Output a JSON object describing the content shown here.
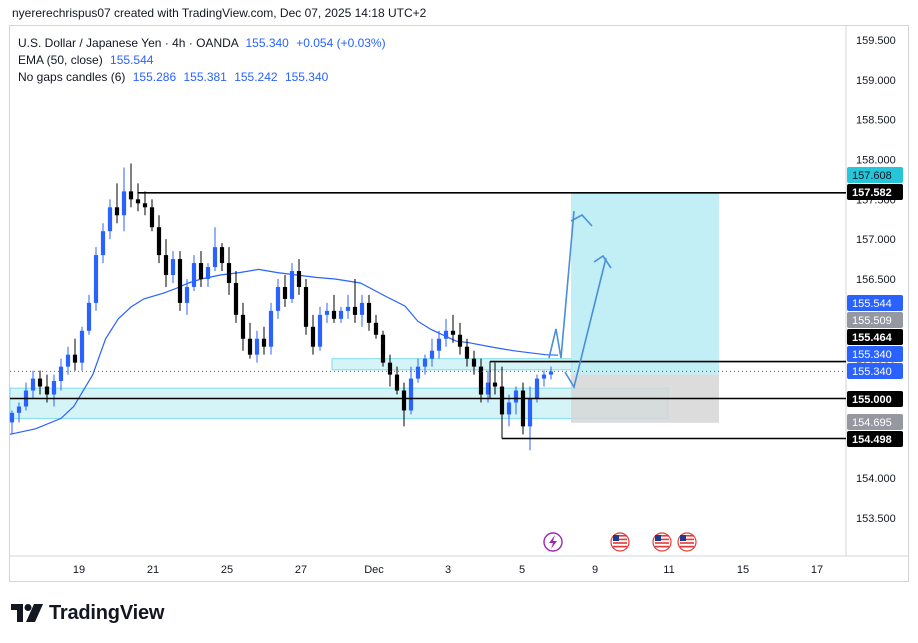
{
  "attribution": "nyererechrispus07 created with TradingView.com, Dec 07, 2025 14:18 UTC+2",
  "legend": {
    "symbol": "U.S. Dollar / Japanese Yen · 4h · OANDA",
    "price": "155.340",
    "change": "+0.054 (+0.03%)",
    "ema_label": "EMA (50, close)",
    "ema_value": "155.544",
    "candles_label": "No gaps candles (6)",
    "candles_values": [
      "155.286",
      "155.381",
      "155.242",
      "155.340"
    ]
  },
  "brand": "TradingView",
  "colors": {
    "up": "#2962ff",
    "down": "#000000",
    "ema": "#2962ff",
    "zone": "#b2ebf2",
    "target": "#b2ebf2",
    "stop": "#d6d6d6",
    "accent": "#26c6da"
  },
  "chart_data": {
    "type": "candlestick",
    "timeframe": "4h",
    "x_ticks": [
      "19",
      "21",
      "25",
      "27",
      "Dec",
      "3",
      "5",
      "9",
      "11",
      "15",
      "17"
    ],
    "y_ticks": [
      "159.500",
      "159.000",
      "158.500",
      "158.000",
      "157.500",
      "157.000",
      "156.500",
      "156.000",
      "155.500",
      "155.000",
      "154.500",
      "154.000",
      "153.500"
    ],
    "ylim": [
      153.25,
      159.75
    ],
    "price_tags": [
      {
        "label": "157.608",
        "value": 157.608,
        "style": "cyan"
      },
      {
        "label": "157.582",
        "value": 157.582,
        "style": "black"
      },
      {
        "label": "155.544",
        "value": 155.544,
        "style": "blue"
      },
      {
        "label": "155.509",
        "value": 155.509,
        "style": "gray"
      },
      {
        "label": "155.464",
        "value": 155.464,
        "style": "black"
      },
      {
        "label": "155.340",
        "value": 155.34,
        "style": "blue"
      },
      {
        "label": "155.340",
        "value": 155.34,
        "style": "blue"
      },
      {
        "label": "155.000",
        "value": 155.0,
        "style": "black"
      },
      {
        "label": "154.695",
        "value": 154.695,
        "style": "gray"
      },
      {
        "label": "154.498",
        "value": 154.498,
        "style": "black"
      }
    ],
    "horizontal_levels": [
      157.582,
      155.464,
      155.0,
      154.498
    ],
    "zones": [
      {
        "from": 154.75,
        "to": 155.13
      },
      {
        "from": 155.36,
        "to": 155.5
      }
    ],
    "position": {
      "entry": 155.3,
      "target": 157.582,
      "stop": 154.695
    },
    "candles": [
      {
        "o": 154.7,
        "h": 154.85,
        "l": 154.55,
        "c": 154.82
      },
      {
        "o": 154.82,
        "h": 154.95,
        "l": 154.7,
        "c": 154.9
      },
      {
        "o": 154.9,
        "h": 155.2,
        "l": 154.85,
        "c": 155.1
      },
      {
        "o": 155.1,
        "h": 155.35,
        "l": 155.0,
        "c": 155.25
      },
      {
        "o": 155.25,
        "h": 155.35,
        "l": 155.05,
        "c": 155.15
      },
      {
        "o": 155.15,
        "h": 155.3,
        "l": 154.95,
        "c": 155.05
      },
      {
        "o": 155.05,
        "h": 155.3,
        "l": 154.9,
        "c": 155.22
      },
      {
        "o": 155.22,
        "h": 155.5,
        "l": 155.1,
        "c": 155.4
      },
      {
        "o": 155.4,
        "h": 155.65,
        "l": 155.3,
        "c": 155.55
      },
      {
        "o": 155.55,
        "h": 155.75,
        "l": 155.35,
        "c": 155.45
      },
      {
        "o": 155.45,
        "h": 155.9,
        "l": 155.35,
        "c": 155.85
      },
      {
        "o": 155.85,
        "h": 156.3,
        "l": 155.8,
        "c": 156.2
      },
      {
        "o": 156.2,
        "h": 156.9,
        "l": 156.1,
        "c": 156.8
      },
      {
        "o": 156.8,
        "h": 157.2,
        "l": 156.7,
        "c": 157.1
      },
      {
        "o": 157.1,
        "h": 157.5,
        "l": 157.0,
        "c": 157.4
      },
      {
        "o": 157.4,
        "h": 157.7,
        "l": 157.2,
        "c": 157.3
      },
      {
        "o": 157.3,
        "h": 157.9,
        "l": 157.1,
        "c": 157.6
      },
      {
        "o": 157.6,
        "h": 157.95,
        "l": 157.4,
        "c": 157.5
      },
      {
        "o": 157.5,
        "h": 157.7,
        "l": 157.35,
        "c": 157.45
      },
      {
        "o": 157.45,
        "h": 157.6,
        "l": 157.3,
        "c": 157.4
      },
      {
        "o": 157.4,
        "h": 157.5,
        "l": 157.1,
        "c": 157.15
      },
      {
        "o": 157.15,
        "h": 157.3,
        "l": 156.7,
        "c": 156.8
      },
      {
        "o": 156.8,
        "h": 157.0,
        "l": 156.4,
        "c": 156.55
      },
      {
        "o": 156.55,
        "h": 156.85,
        "l": 156.45,
        "c": 156.75
      },
      {
        "o": 156.75,
        "h": 156.85,
        "l": 156.1,
        "c": 156.2
      },
      {
        "o": 156.2,
        "h": 156.5,
        "l": 156.05,
        "c": 156.4
      },
      {
        "o": 156.4,
        "h": 156.8,
        "l": 156.35,
        "c": 156.7
      },
      {
        "o": 156.7,
        "h": 156.85,
        "l": 156.4,
        "c": 156.5
      },
      {
        "o": 156.5,
        "h": 156.7,
        "l": 156.4,
        "c": 156.65
      },
      {
        "o": 156.65,
        "h": 157.15,
        "l": 156.6,
        "c": 156.9
      },
      {
        "o": 156.9,
        "h": 156.95,
        "l": 156.6,
        "c": 156.7
      },
      {
        "o": 156.7,
        "h": 156.9,
        "l": 156.3,
        "c": 156.45
      },
      {
        "o": 156.45,
        "h": 156.6,
        "l": 155.95,
        "c": 156.05
      },
      {
        "o": 156.05,
        "h": 156.2,
        "l": 155.6,
        "c": 155.75
      },
      {
        "o": 155.75,
        "h": 155.95,
        "l": 155.5,
        "c": 155.55
      },
      {
        "o": 155.55,
        "h": 155.85,
        "l": 155.45,
        "c": 155.75
      },
      {
        "o": 155.75,
        "h": 155.9,
        "l": 155.55,
        "c": 155.65
      },
      {
        "o": 155.65,
        "h": 156.2,
        "l": 155.55,
        "c": 156.1
      },
      {
        "o": 156.1,
        "h": 156.5,
        "l": 156.0,
        "c": 156.4
      },
      {
        "o": 156.4,
        "h": 156.55,
        "l": 156.15,
        "c": 156.25
      },
      {
        "o": 156.25,
        "h": 156.7,
        "l": 156.2,
        "c": 156.6
      },
      {
        "o": 156.6,
        "h": 156.75,
        "l": 156.3,
        "c": 156.4
      },
      {
        "o": 156.4,
        "h": 156.5,
        "l": 155.8,
        "c": 155.9
      },
      {
        "o": 155.9,
        "h": 156.05,
        "l": 155.55,
        "c": 155.65
      },
      {
        "o": 155.65,
        "h": 156.15,
        "l": 155.6,
        "c": 156.05
      },
      {
        "o": 156.05,
        "h": 156.2,
        "l": 155.95,
        "c": 156.1
      },
      {
        "o": 156.1,
        "h": 156.3,
        "l": 155.95,
        "c": 156.0
      },
      {
        "o": 156.0,
        "h": 156.15,
        "l": 155.95,
        "c": 156.1
      },
      {
        "o": 156.1,
        "h": 156.3,
        "l": 156.0,
        "c": 156.15
      },
      {
        "o": 156.15,
        "h": 156.5,
        "l": 155.95,
        "c": 156.05
      },
      {
        "o": 156.05,
        "h": 156.3,
        "l": 155.9,
        "c": 156.2
      },
      {
        "o": 156.2,
        "h": 156.3,
        "l": 155.85,
        "c": 155.95
      },
      {
        "o": 155.95,
        "h": 156.05,
        "l": 155.75,
        "c": 155.8
      },
      {
        "o": 155.8,
        "h": 155.85,
        "l": 155.4,
        "c": 155.45
      },
      {
        "o": 155.45,
        "h": 155.55,
        "l": 155.15,
        "c": 155.3
      },
      {
        "o": 155.3,
        "h": 155.4,
        "l": 155.05,
        "c": 155.1
      },
      {
        "o": 155.1,
        "h": 155.2,
        "l": 154.65,
        "c": 154.85
      },
      {
        "o": 154.85,
        "h": 155.4,
        "l": 154.8,
        "c": 155.25
      },
      {
        "o": 155.25,
        "h": 155.5,
        "l": 155.2,
        "c": 155.4
      },
      {
        "o": 155.4,
        "h": 155.55,
        "l": 155.3,
        "c": 155.5
      },
      {
        "o": 155.5,
        "h": 155.75,
        "l": 155.4,
        "c": 155.6
      },
      {
        "o": 155.6,
        "h": 155.85,
        "l": 155.5,
        "c": 155.75
      },
      {
        "o": 155.75,
        "h": 156.0,
        "l": 155.65,
        "c": 155.85
      },
      {
        "o": 155.85,
        "h": 156.05,
        "l": 155.7,
        "c": 155.8
      },
      {
        "o": 155.8,
        "h": 155.95,
        "l": 155.55,
        "c": 155.65
      },
      {
        "o": 155.65,
        "h": 155.75,
        "l": 155.4,
        "c": 155.5
      },
      {
        "o": 155.5,
        "h": 155.6,
        "l": 155.3,
        "c": 155.4
      },
      {
        "o": 155.4,
        "h": 155.5,
        "l": 154.95,
        "c": 155.05
      },
      {
        "o": 155.05,
        "h": 155.35,
        "l": 154.95,
        "c": 155.2
      },
      {
        "o": 155.2,
        "h": 155.45,
        "l": 155.05,
        "c": 155.15
      },
      {
        "o": 155.15,
        "h": 155.4,
        "l": 154.7,
        "c": 154.8
      },
      {
        "o": 154.8,
        "h": 155.05,
        "l": 154.65,
        "c": 154.95
      },
      {
        "o": 154.95,
        "h": 155.15,
        "l": 154.8,
        "c": 155.1
      },
      {
        "o": 155.1,
        "h": 155.2,
        "l": 154.55,
        "c": 154.65
      },
      {
        "o": 154.65,
        "h": 155.15,
        "l": 154.35,
        "c": 155.0
      },
      {
        "o": 155.0,
        "h": 155.3,
        "l": 154.95,
        "c": 155.25
      },
      {
        "o": 155.25,
        "h": 155.35,
        "l": 155.15,
        "c": 155.3
      },
      {
        "o": 155.3,
        "h": 155.4,
        "l": 155.24,
        "c": 155.34
      }
    ],
    "ema": [
      [
        0,
        154.55
      ],
      [
        8,
        154.62
      ],
      [
        16,
        154.75
      ],
      [
        20,
        154.9
      ],
      [
        26,
        155.3
      ],
      [
        30,
        155.75
      ],
      [
        34,
        156.0
      ],
      [
        38,
        156.15
      ],
      [
        42,
        156.25
      ],
      [
        48,
        156.32
      ],
      [
        52,
        156.38
      ],
      [
        56,
        156.45
      ],
      [
        60,
        156.5
      ],
      [
        66,
        156.55
      ],
      [
        72,
        156.58
      ],
      [
        78,
        156.62
      ],
      [
        84,
        156.58
      ],
      [
        90,
        156.55
      ],
      [
        96,
        156.52
      ],
      [
        102,
        156.5
      ],
      [
        110,
        156.45
      ],
      [
        118,
        156.28
      ],
      [
        124,
        156.16
      ],
      [
        128,
        155.97
      ],
      [
        132,
        155.87
      ],
      [
        140,
        155.72
      ],
      [
        144,
        155.7
      ],
      [
        152,
        155.64
      ],
      [
        158,
        155.6
      ],
      [
        162,
        155.58
      ],
      [
        168,
        155.55
      ],
      [
        172,
        155.544
      ]
    ]
  }
}
